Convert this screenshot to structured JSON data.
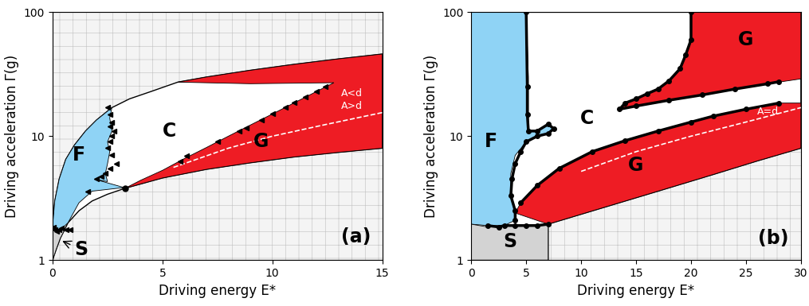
{
  "chart_data": [
    {
      "type": "phase_diagram",
      "log": "y",
      "xlabel": "Driving energy E*",
      "ylabel": "Driving acceleration Γ(g)",
      "xlim": [
        0,
        15
      ],
      "ylim": [
        1,
        100
      ],
      "xticks": [
        0,
        5,
        10,
        15
      ],
      "yticks": [
        1,
        10,
        100
      ],
      "envelope": {
        "color": "#ffffff",
        "x": [
          0,
          0.1,
          0.3,
          0.6,
          1,
          1.5,
          2,
          2.7,
          3.5,
          4.5,
          5.7,
          7,
          9,
          11,
          13,
          15,
          15,
          13,
          11,
          9,
          7,
          5,
          3.3,
          2.5,
          1.8,
          1.2,
          0.7,
          0.35,
          0.15,
          0
        ],
        "y": [
          1.9,
          3,
          4.5,
          6.5,
          8.5,
          11,
          13.5,
          17,
          20,
          23,
          27.3,
          30,
          34,
          38,
          42,
          46,
          8,
          7.4,
          6.8,
          6.1,
          5.4,
          4.6,
          3.8,
          3.4,
          3.0,
          2.5,
          2.0,
          1.5,
          1.2,
          1
        ]
      },
      "regions": [
        {
          "color": "#8fd3f5",
          "x": [
            0,
            0.1,
            0.3,
            0.6,
            1,
            1.5,
            2,
            2.7,
            2.6,
            2.7,
            2.5,
            2.6,
            2.5,
            2.4,
            2.5,
            1.9,
            3.25,
            1.8,
            1.2,
            0.7,
            0.35,
            0
          ],
          "y": [
            1.9,
            3,
            4.5,
            6.5,
            8.5,
            11,
            13.5,
            17,
            14,
            11,
            9,
            7.5,
            6,
            5,
            4.3,
            4.5,
            3.85,
            3.6,
            2.9,
            2.0,
            1.75,
            1.85
          ]
        },
        {
          "color": "#d3d3d3",
          "x": [
            0,
            0.15,
            0.35,
            0.55,
            0.3,
            0
          ],
          "y": [
            1,
            1.2,
            1.5,
            1.75,
            1.75,
            1.9
          ]
        },
        {
          "color": "#ee1c24",
          "x": [
            3.3,
            5,
            7,
            9,
            11,
            13,
            15,
            15,
            13,
            11,
            9,
            7,
            5.7,
            9,
            12.8,
            12,
            11,
            10,
            9,
            8,
            7,
            6,
            5,
            4
          ],
          "y": [
            3.8,
            4.6,
            5.4,
            6.1,
            6.8,
            7.4,
            8,
            46,
            42,
            38,
            34,
            30,
            27.3,
            26.5,
            27,
            22.9,
            18.6,
            15.1,
            12.3,
            10,
            8.1,
            6.6,
            5.3,
            4.4
          ]
        }
      ],
      "lines": [
        {
          "color": "#ffffff",
          "line_style": "dashed",
          "x": [
            5.5,
            8,
            10,
            12.5,
            15
          ],
          "y": [
            5.6,
            8,
            10,
            12.5,
            15.5
          ]
        }
      ],
      "series": [
        {
          "color": "#000000",
          "marker": "triangle_left",
          "line_style": "none",
          "x": [
            5.8,
            6.1,
            7.5,
            8.5,
            8.8,
            9.5,
            10,
            10.6,
            11,
            11.5,
            12,
            12.4,
            2.5,
            2.6,
            2.7,
            2.6,
            2.8,
            2.7,
            2.6,
            2.5,
            2.7,
            2.9,
            2.6,
            2.4,
            2.2,
            2.0,
            1.6,
            0.05,
            0.1,
            0.2,
            0.3,
            0.4,
            0.6,
            0.8
          ],
          "y": [
            6.3,
            6.9,
            9,
            11,
            11.7,
            13.5,
            15.1,
            17,
            18.6,
            20.6,
            22.9,
            25,
            17,
            15,
            13,
            12,
            11,
            10,
            9,
            8,
            7,
            6,
            5.5,
            5,
            4.7,
            4.5,
            3.6,
            1.85,
            1.75,
            1.7,
            1.75,
            1.8,
            1.75,
            1.75
          ]
        },
        {
          "color": "#000000",
          "marker": "circle",
          "line_style": "none",
          "x": [
            3.3
          ],
          "y": [
            3.8
          ]
        }
      ],
      "annotations": [
        {
          "text": "F",
          "x": 1.2,
          "y": 7,
          "color": "#000000"
        },
        {
          "text": "C",
          "x": 5.3,
          "y": 11,
          "color": "#000000"
        },
        {
          "text": "G",
          "x": 9.5,
          "y": 9,
          "color": "#000000"
        },
        {
          "text": "S",
          "x": 1.3,
          "y": 1.22,
          "color": "#000000",
          "arrow_x": 0.35,
          "arrow_y": 1.45
        },
        {
          "text": "(a)",
          "x": 13.8,
          "y": 1.55,
          "color": "#000000"
        },
        {
          "text": "A<d",
          "x": 13.6,
          "y": 22,
          "color": "#ffffff"
        },
        {
          "text": "A>d",
          "x": 13.6,
          "y": 17.5,
          "color": "#ffffff"
        }
      ]
    },
    {
      "type": "phase_diagram",
      "log": "y",
      "xlabel": "Driving energy E*",
      "ylabel": "Driving acceleration Γ(g)",
      "xlim": [
        0,
        30
      ],
      "ylim": [
        1,
        100
      ],
      "xticks": [
        0,
        5,
        10,
        15,
        20,
        25,
        30
      ],
      "yticks": [
        1,
        10,
        100
      ],
      "envelope": {
        "color": "#ffffff",
        "x": [
          0,
          7,
          7,
          12,
          17,
          22,
          26,
          30,
          30,
          0
        ],
        "y": [
          1,
          1,
          1.95,
          2.65,
          3.6,
          4.9,
          6.3,
          8,
          100,
          100
        ]
      },
      "regions": [
        {
          "color": "#8fd3f5",
          "x": [
            0,
            0,
            1.5,
            3,
            4,
            4,
            3.6,
            3.6,
            4,
            5,
            6,
            7,
            7.5,
            7.2,
            6,
            5.2,
            5.2,
            5
          ],
          "y": [
            100,
            1.95,
            1.9,
            1.9,
            2.1,
            2.5,
            3.3,
            5,
            7,
            9,
            10,
            10.5,
            11.5,
            12.5,
            11,
            11,
            30,
            100
          ]
        },
        {
          "color": "#d3d3d3",
          "x": [
            0,
            7,
            7,
            5,
            3,
            1.5,
            0
          ],
          "y": [
            1,
            1,
            1.95,
            1.9,
            1.9,
            1.85,
            1.95
          ]
        },
        {
          "color": "#ee1c24",
          "x": [
            4,
            7,
            12,
            17,
            22,
            26,
            30,
            30,
            28,
            25,
            22,
            20,
            17,
            14,
            11,
            8,
            6,
            4.5
          ],
          "y": [
            2.4,
            1.95,
            2.65,
            3.6,
            4.9,
            6.3,
            8,
            18.5,
            18.5,
            16.5,
            14.5,
            13,
            11,
            9.2,
            7.5,
            5.5,
            4,
            2.9
          ]
        },
        {
          "color": "#ee1c24",
          "x": [
            13.5,
            15,
            18,
            21,
            24,
            27,
            30,
            30,
            20,
            20,
            19.5,
            19,
            18,
            17,
            16,
            15,
            14
          ],
          "y": [
            16.5,
            17.5,
            19.5,
            21.5,
            24,
            26.5,
            29,
            100,
            100,
            60,
            45,
            35,
            28,
            24,
            22,
            20,
            18.5
          ]
        }
      ],
      "lines": [
        {
          "color": "#ffffff",
          "line_style": "dashed",
          "x": [
            10,
            15,
            20,
            25,
            30
          ],
          "y": [
            5.2,
            7.5,
            10,
            13,
            17
          ]
        }
      ],
      "series": [
        {
          "color": "#000000",
          "marker": "circle",
          "line_style": "solid",
          "x": [
            1.5,
            2.5,
            3,
            4,
            5,
            6,
            7
          ],
          "y": [
            1.9,
            1.85,
            1.9,
            1.9,
            1.9,
            1.9,
            1.95
          ]
        },
        {
          "color": "#000000",
          "marker": "circle",
          "line_style": "solid",
          "x": [
            4,
            4,
            3.6,
            3.7,
            4,
            4.5,
            5,
            6,
            7,
            7.5,
            7,
            6,
            5.2,
            5.1,
            5.1,
            5
          ],
          "y": [
            2.1,
            2.5,
            3.3,
            4.5,
            6,
            7.5,
            9,
            10,
            10.5,
            11.5,
            12.5,
            11,
            11,
            15,
            25,
            100
          ]
        },
        {
          "color": "#000000",
          "marker": "circle",
          "line_style": "solid",
          "x": [
            4.5,
            6,
            8,
            11,
            14,
            17,
            20,
            22,
            25,
            28
          ],
          "y": [
            2.9,
            4,
            5.5,
            7.5,
            9.2,
            11,
            13,
            14.5,
            16.5,
            18.5
          ]
        },
        {
          "color": "#000000",
          "marker": "circle",
          "line_style": "solid",
          "x": [
            28,
            27,
            24,
            21,
            18,
            15,
            13.5,
            14,
            15,
            16,
            17,
            18,
            19,
            19.5,
            20,
            20
          ],
          "y": [
            27.5,
            26.5,
            24,
            21.5,
            19.5,
            17.5,
            16.5,
            18.5,
            20,
            22,
            24,
            28,
            35,
            45,
            60,
            100
          ]
        }
      ],
      "annotations": [
        {
          "text": "F",
          "x": 1.8,
          "y": 9,
          "color": "#000000"
        },
        {
          "text": "C",
          "x": 10.5,
          "y": 14,
          "color": "#000000"
        },
        {
          "text": "G",
          "x": 15,
          "y": 5.8,
          "color": "#000000"
        },
        {
          "text": "G",
          "x": 25,
          "y": 60,
          "color": "#000000"
        },
        {
          "text": "S",
          "x": 3.5,
          "y": 1.4,
          "color": "#000000"
        },
        {
          "text": "(b)",
          "x": 27.5,
          "y": 1.5,
          "color": "#000000"
        },
        {
          "text": "A=d",
          "x": 27,
          "y": 15.8,
          "color": "#ffffff"
        }
      ]
    }
  ]
}
